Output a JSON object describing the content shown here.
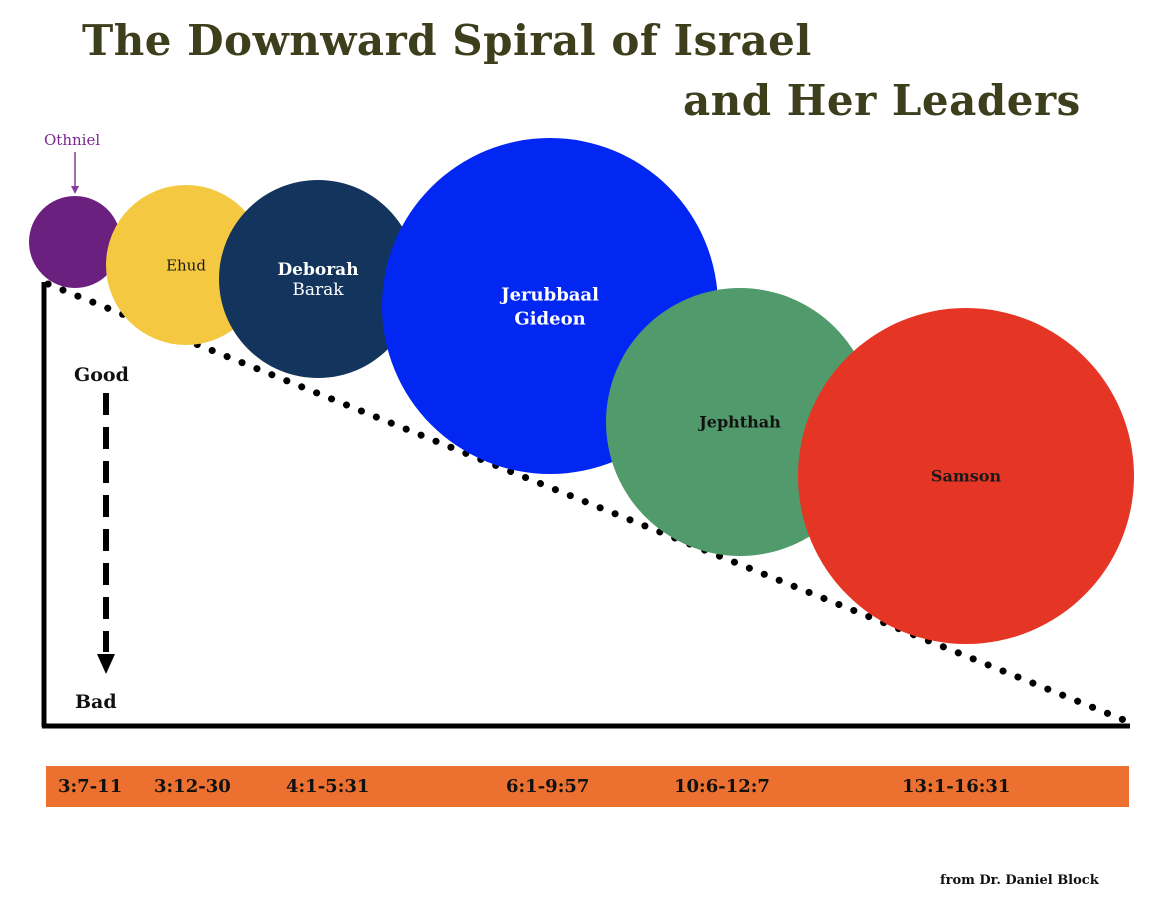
{
  "title": {
    "line1": "The Downward Spiral of Israel",
    "line2": "and Her Leaders"
  },
  "axis": {
    "top_label": "Good",
    "bottom_label": "Bad"
  },
  "leaders": [
    {
      "id": "othniel",
      "label_lines": [
        "Othniel"
      ],
      "label_outside": true,
      "color": "#6b1f7e",
      "label_color": "#7a2a8f"
    },
    {
      "id": "ehud",
      "label_lines": [
        "Ehud"
      ],
      "color": "#f5c842",
      "label_color": "#1a1a1a"
    },
    {
      "id": "deborah-barak",
      "label_lines": [
        "Deborah",
        "Barak"
      ],
      "color": "#13345c",
      "label_color": "#ffffff"
    },
    {
      "id": "jerubbaal-gideon",
      "label_lines": [
        "Jerubbaal",
        "Gideon"
      ],
      "color": "#0327f2",
      "label_color": "#ffffff"
    },
    {
      "id": "jephthah",
      "label_lines": [
        "Jephthah"
      ],
      "color": "#519a6c",
      "label_color": "#111111"
    },
    {
      "id": "samson",
      "label_lines": [
        "Samson"
      ],
      "color": "#e53524",
      "label_color": "#1a1a1a"
    }
  ],
  "references": [
    "3:7-11",
    "3:12-30",
    "4:1-5:31",
    "6:1-9:57",
    "10:6-12:7",
    "13:1-16:31"
  ],
  "source": "from Dr. Daniel Block"
}
